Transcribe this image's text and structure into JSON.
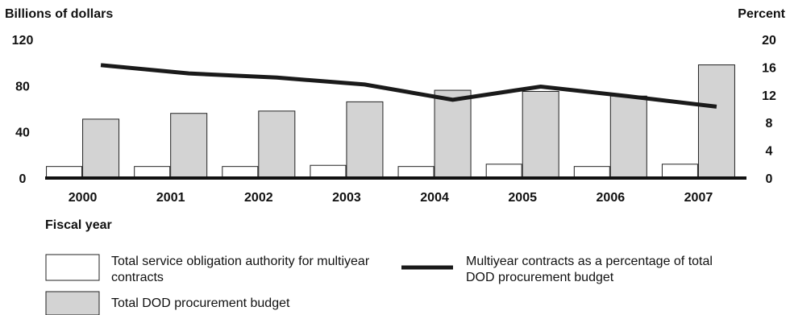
{
  "chart_data": {
    "type": "bar",
    "left_axis_title": "Billions of dollars",
    "right_axis_title": "Percent",
    "xlabel": "Fiscal year",
    "categories": [
      "2000",
      "2001",
      "2002",
      "2003",
      "2004",
      "2005",
      "2006",
      "2007"
    ],
    "ylim_left": [
      0,
      120
    ],
    "ylim_right": [
      0,
      20
    ],
    "left_ticks": [
      "120",
      "80",
      "40",
      "0"
    ],
    "left_tick_values": [
      120,
      80,
      40,
      0
    ],
    "right_ticks": [
      "20",
      "16",
      "12",
      "8",
      "4",
      "0"
    ],
    "right_tick_values": [
      20,
      16,
      12,
      8,
      4,
      0
    ],
    "grid": false,
    "legend_position": "bottom",
    "series": [
      {
        "name": "Total service obligation authority for multiyear contracts",
        "kind": "bar",
        "axis": "left",
        "color": "#ffffff",
        "values": [
          10,
          10,
          10,
          11,
          10,
          12,
          10,
          12
        ]
      },
      {
        "name": "Total DOD procurement budget",
        "kind": "bar",
        "axis": "left",
        "color": "#d3d3d3",
        "values": [
          51,
          56,
          58,
          66,
          76,
          75,
          71,
          98
        ]
      },
      {
        "name": "Multiyear contracts as a percentage of total DOD procurement budget",
        "kind": "line",
        "axis": "right",
        "color": "#1a1a1a",
        "values": [
          16.3,
          15.1,
          14.5,
          13.5,
          11.3,
          13.2,
          11.8,
          10.3
        ]
      }
    ]
  }
}
